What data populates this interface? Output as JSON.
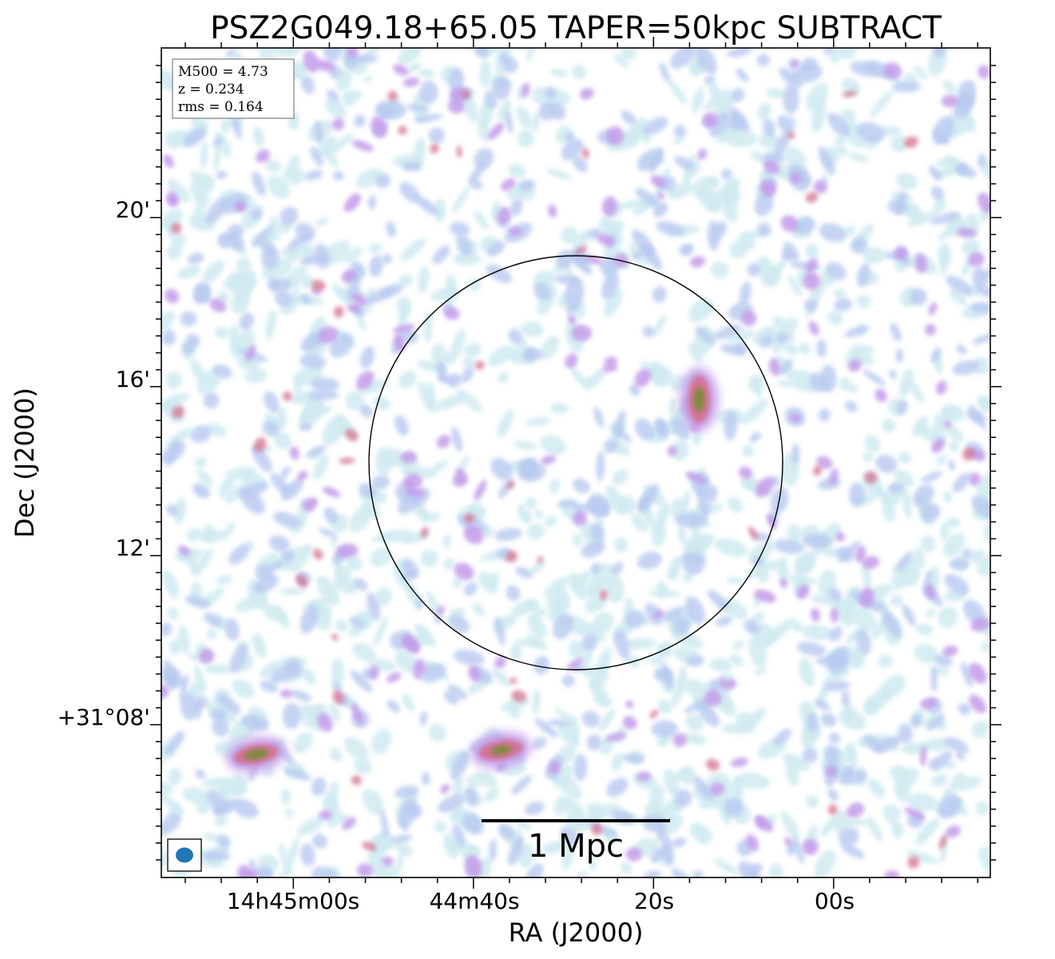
{
  "chart_data": {
    "type": "heatmap",
    "title": "PSZ2G049.18+65.05 TAPER=50kpc SUBTRACT",
    "xlabel": "RA (J2000)",
    "ylabel": "Dec (J2000)",
    "x_ticks": [
      "14h45m00s",
      "44m40s",
      "20s",
      "00s"
    ],
    "y_ticks": [
      "20'",
      "16'",
      "12'",
      "+31°08'"
    ],
    "info_box": {
      "m500": "M500 = 4.73",
      "z": "z = 0.234",
      "rms": "rms = 0.164"
    },
    "scale_bar_label": "1 Mpc",
    "colors": {
      "low": "#cfeaf0",
      "mid_low": "#b8c9f0",
      "mid": "#c39bea",
      "high": "#d4708f",
      "peak": "#7e8a3a",
      "beam": "#1f77b4",
      "circle": "#000000"
    },
    "sources": [
      {
        "name": "peak-left",
        "ra_s": 64.2,
        "dec_arcmin": 7.3,
        "level": 1.0
      },
      {
        "name": "peak-right",
        "ra_s": 15.0,
        "dec_arcmin": 15.7,
        "level": 0.95
      },
      {
        "name": "peak-bottom",
        "ra_s": 37.0,
        "dec_arcmin": 7.4,
        "level": 0.85
      }
    ],
    "grid": false
  }
}
